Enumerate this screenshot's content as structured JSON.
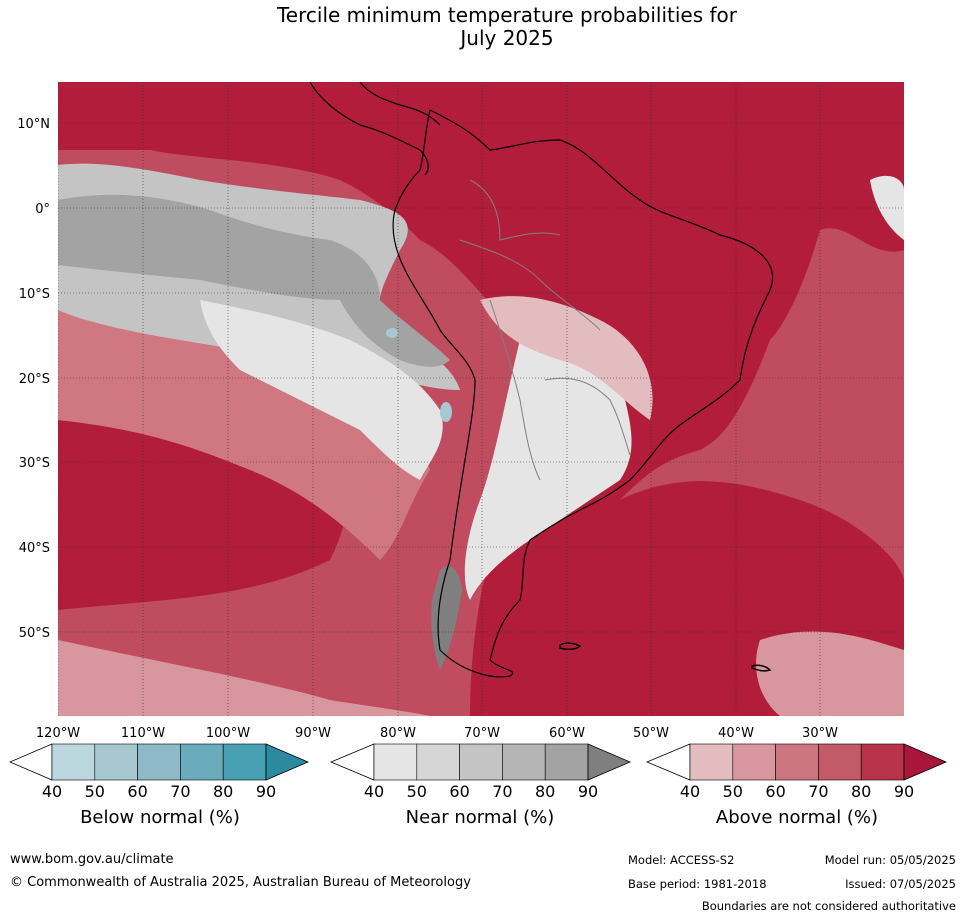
{
  "title": {
    "line1": "Tercile minimum temperature probabilities for",
    "line2": "July 2025"
  },
  "map": {
    "lat_labels": [
      "10°N",
      "0°",
      "10°S",
      "20°S",
      "30°S",
      "40°S",
      "50°S"
    ],
    "lon_labels": [
      "120°W",
      "110°W",
      "100°W",
      "90°W",
      "80°W",
      "70°W",
      "60°W",
      "50°W",
      "40°W",
      "30°W"
    ],
    "colors": {
      "ocean_base": "#c04c60",
      "above_90": "#b31d3c",
      "above_60": "#d07882",
      "above_50": "#d8979f",
      "above_40": "#e3bcc0",
      "near_40": "#e5e5e5",
      "near_50": "#d6d6d6",
      "near_60": "#c4c4c4",
      "near_70": "#b4b4b4",
      "near_80": "#a3a3a3",
      "near_90": "#7f7f7f",
      "below_50": "#a8c8d0",
      "coast": "#000000",
      "border": "#808080"
    }
  },
  "colorbars": [
    {
      "title": "Below normal (%)",
      "ticks": [
        "40",
        "50",
        "60",
        "70",
        "80",
        "90"
      ],
      "colors": [
        "#bdd7de",
        "#a8c8d0",
        "#8dbac6",
        "#6aabbc",
        "#47a0b3",
        "#2b8aa0"
      ]
    },
    {
      "title": "Near normal (%)",
      "ticks": [
        "40",
        "50",
        "60",
        "70",
        "80",
        "90"
      ],
      "colors": [
        "#e5e5e5",
        "#d6d6d6",
        "#c4c4c4",
        "#b4b4b4",
        "#a3a3a3",
        "#7f7f7f"
      ]
    },
    {
      "title": "Above normal (%)",
      "ticks": [
        "40",
        "50",
        "60",
        "70",
        "80",
        "90"
      ],
      "colors": [
        "#e3bcc0",
        "#d8979f",
        "#cc7480",
        "#c35a68",
        "#b8334a",
        "#a8173a"
      ]
    }
  ],
  "footer": {
    "website": "www.bom.gov.au/climate",
    "copyright": "© Commonwealth of Australia 2025, Australian Bureau of Meteorology",
    "model": "Model: ACCESS-S2",
    "model_run": "Model run: 05/05/2025",
    "base_period": "Base period: 1981-2018",
    "issued": "Issued: 07/05/2025",
    "disclaimer": "Boundaries are not considered authoritative"
  }
}
